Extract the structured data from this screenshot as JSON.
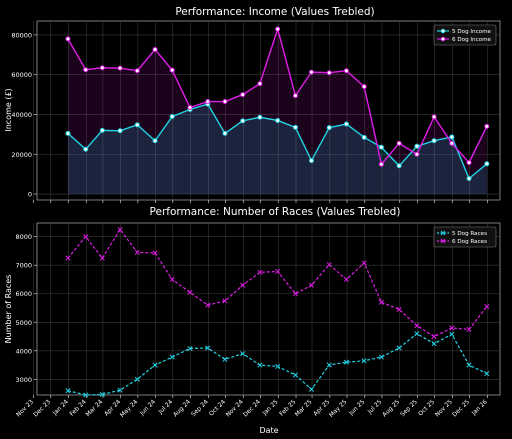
{
  "chart_data": [
    {
      "type": "area",
      "title": "Performance: Income (Values Trebled)",
      "xlabel": "",
      "ylabel": "Income (£)",
      "x": [
        "2023-12",
        "2024-01",
        "2024-02",
        "2024-03",
        "2024-04",
        "2024-05",
        "2024-06",
        "2024-07",
        "2024-08",
        "2024-09",
        "2024-10",
        "2024-11",
        "2024-12",
        "2025-01",
        "2025-02",
        "2025-03",
        "2025-04",
        "2025-05",
        "2025-06",
        "2025-07",
        "2025-08",
        "2025-09",
        "2025-10",
        "2025-11",
        "2025-12"
      ],
      "ylim": [
        -3000,
        87000
      ],
      "yticks": [
        0,
        20000,
        40000,
        60000,
        80000
      ],
      "grid": true,
      "legend": "top-right",
      "series": [
        {
          "name": "5 Dog Income",
          "color": "#22d3e6",
          "values": [
            30500,
            22500,
            32000,
            31800,
            34800,
            26800,
            39000,
            42500,
            45200,
            30500,
            36800,
            38600,
            37000,
            33500,
            16800,
            33400,
            35200,
            28500,
            23500,
            14200,
            24000,
            26800,
            28700,
            7800,
            15200
          ]
        },
        {
          "name": "6 Dog Income",
          "color": "#e01ce8",
          "values": [
            78000,
            62500,
            63500,
            63300,
            62000,
            72700,
            62300,
            43500,
            46500,
            46500,
            50000,
            55500,
            83000,
            49500,
            61300,
            61000,
            62000,
            54000,
            15000,
            25500,
            20000,
            38800,
            25500,
            15800,
            34000
          ]
        }
      ]
    },
    {
      "type": "line",
      "title": "Performance: Number of Races (Values Trebled)",
      "xlabel": "Date",
      "ylabel": "Number of Races",
      "x": [
        "2023-12",
        "2024-01",
        "2024-02",
        "2024-03",
        "2024-04",
        "2024-05",
        "2024-06",
        "2024-07",
        "2024-08",
        "2024-09",
        "2024-10",
        "2024-11",
        "2024-12",
        "2025-01",
        "2025-02",
        "2025-03",
        "2025-04",
        "2025-05",
        "2025-06",
        "2025-07",
        "2025-08",
        "2025-09",
        "2025-10",
        "2025-11",
        "2025-12"
      ],
      "xticks": [
        "Nov 23",
        "Dec 23",
        "Jan 24",
        "Feb 24",
        "Mar 24",
        "Apr 24",
        "May 24",
        "Jun 24",
        "Jul 24",
        "Aug 24",
        "Sep 24",
        "Oct 24",
        "Nov 24",
        "Dec 24",
        "Jan 25",
        "Feb 25",
        "Mar 25",
        "Apr 25",
        "May 25",
        "Jun 25",
        "Jul 25",
        "Aug 25",
        "Sep 25",
        "Oct 25",
        "Nov 25",
        "Dec 25",
        "Jan 26"
      ],
      "ylim": [
        2450,
        8480
      ],
      "yticks": [
        3000,
        4000,
        5000,
        6000,
        7000,
        8000
      ],
      "grid": true,
      "legend": "top-right",
      "series": [
        {
          "name": "5 Dog Races",
          "color": "#22d3e6",
          "values": [
            2600,
            2450,
            2470,
            2620,
            3000,
            3500,
            3780,
            4080,
            4100,
            3700,
            3900,
            3500,
            3450,
            3150,
            2650,
            3500,
            3600,
            3650,
            3780,
            4100,
            4600,
            4250,
            4580,
            3500,
            3200
          ]
        },
        {
          "name": "6 Dog Races",
          "color": "#e01ce8",
          "values": [
            7250,
            8000,
            7250,
            8250,
            7450,
            7430,
            6500,
            6050,
            5600,
            5750,
            6300,
            6750,
            6780,
            6000,
            6300,
            7020,
            6500,
            7080,
            5700,
            5450,
            4880,
            4500,
            4800,
            4750,
            5550
          ]
        }
      ]
    }
  ]
}
